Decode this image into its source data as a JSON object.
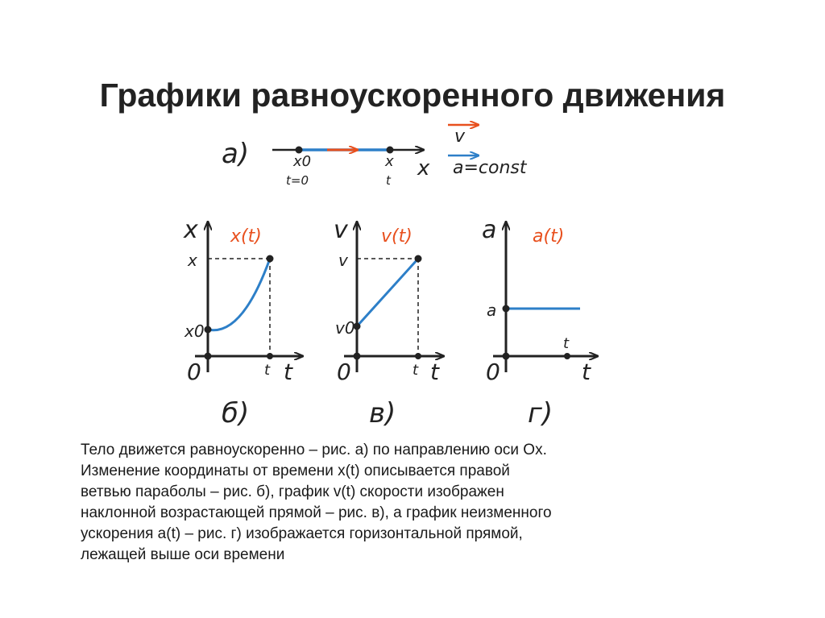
{
  "slide": {
    "title": "Графики равноускоренного движения"
  },
  "figure_a": {
    "panel_label": "а)",
    "axis_label": "x",
    "start_label": "x0",
    "start_time": "t=0",
    "end_label": "x",
    "end_time": "t",
    "legend_v": "v",
    "legend_a": "a=const",
    "colors": {
      "velocity": "#e8501e",
      "acceleration": "#2d7fc8",
      "line": "#2d7fc8"
    }
  },
  "graph_b": {
    "panel_label": "б)",
    "y_axis_label": "x",
    "x_axis_label": "t",
    "curve_label": "x(t)",
    "y_tick_top": "x",
    "y_tick_start": "x0",
    "x_tick": "t",
    "origin": "0"
  },
  "graph_v": {
    "panel_label": "в)",
    "y_axis_label": "v",
    "x_axis_label": "t",
    "curve_label": "v(t)",
    "y_tick_top": "v",
    "y_tick_start": "v0",
    "x_tick": "t",
    "origin": "0"
  },
  "graph_g": {
    "panel_label": "г)",
    "y_axis_label": "a",
    "x_axis_label": "t",
    "curve_label": "a(t)",
    "y_tick": "a",
    "x_tick": "t",
    "origin": "0"
  },
  "caption": {
    "lines": [
      "Тело движется равноускоренно – рис. а) по направлению оси Ox.",
      "Изменение координаты от времени x(t) описывается правой",
      "ветвью параболы – рис. б), график v(t) скорости изображен",
      "наклонной возрастающей прямой – рис. в), а график неизменного",
      "ускорения a(t) – рис. г) изображается горизонтальной прямой,",
      "лежащей выше оси времени"
    ]
  },
  "colors": {
    "curve": "#2d7fc8",
    "label_red": "#e8501e",
    "axis": "#222222"
  }
}
